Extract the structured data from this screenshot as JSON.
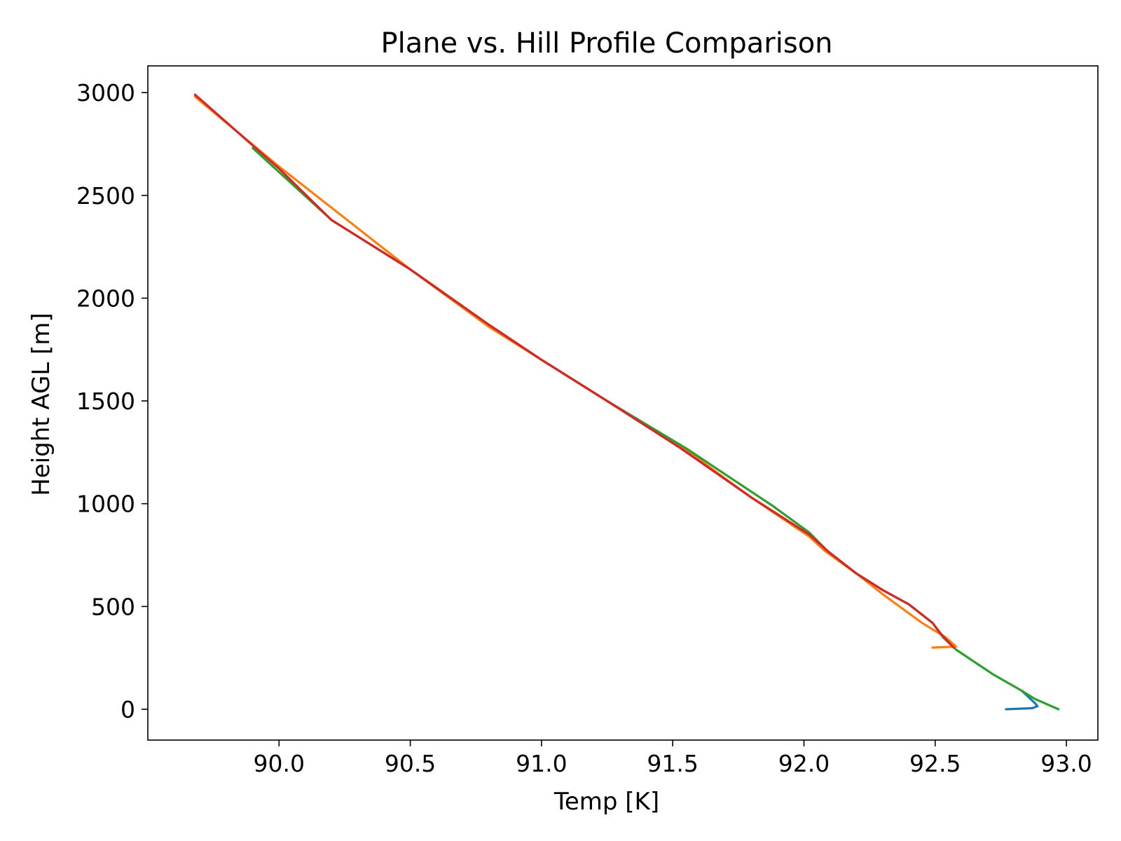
{
  "chart_data": {
    "type": "line",
    "title": "Plane vs. Hill Profile Comparison",
    "xlabel": "Temp [K]",
    "ylabel": "Height AGL [m]",
    "xlim": [
      89.5,
      93.12
    ],
    "ylim": [
      -150,
      3130
    ],
    "xticks": [
      90.0,
      90.5,
      91.0,
      91.5,
      92.0,
      92.5,
      93.0
    ],
    "xtick_labels": [
      "90.0",
      "90.5",
      "91.0",
      "91.5",
      "92.0",
      "92.5",
      "93.0"
    ],
    "yticks": [
      0,
      500,
      1000,
      1500,
      2000,
      2500,
      3000
    ],
    "ytick_labels": [
      "0",
      "500",
      "1000",
      "1500",
      "2000",
      "2500",
      "3000"
    ],
    "grid": false,
    "legend": false,
    "series": [
      {
        "color": "#1f77b4",
        "x": [
          92.77,
          92.87,
          92.89,
          92.88,
          92.83
        ],
        "y": [
          0,
          5,
          15,
          30,
          90
        ]
      },
      {
        "color": "#ff7f0e",
        "x": [
          92.49,
          92.58,
          92.54,
          92.45,
          92.3,
          92.2,
          92.08,
          92.02,
          91.8,
          91.53,
          91.25,
          91.0,
          90.8,
          90.5,
          90.0,
          89.68
        ],
        "y": [
          300,
          305,
          350,
          420,
          560,
          660,
          770,
          840,
          1030,
          1280,
          1500,
          1700,
          1860,
          2140,
          2640,
          2980
        ]
      },
      {
        "color": "#2ca02c",
        "x": [
          92.97,
          92.88,
          92.83,
          92.72,
          92.58,
          92.53,
          92.49,
          92.4,
          92.3,
          92.2,
          92.09,
          92.02,
          91.88,
          91.55,
          91.25,
          91.0,
          90.8,
          90.5,
          90.2,
          89.9
        ],
        "y": [
          0,
          50,
          90,
          170,
          290,
          350,
          420,
          510,
          580,
          660,
          770,
          860,
          990,
          1270,
          1500,
          1700,
          1870,
          2140,
          2380,
          2730
        ]
      },
      {
        "color": "#d62728",
        "x": [
          92.57,
          92.52,
          92.49,
          92.4,
          92.3,
          92.2,
          92.09,
          92.02,
          91.8,
          91.53,
          91.25,
          91.0,
          90.8,
          90.5,
          90.2,
          90.0,
          89.68
        ],
        "y": [
          300,
          370,
          420,
          510,
          580,
          660,
          770,
          850,
          1030,
          1270,
          1500,
          1700,
          1870,
          2140,
          2380,
          2630,
          2990
        ]
      }
    ]
  }
}
